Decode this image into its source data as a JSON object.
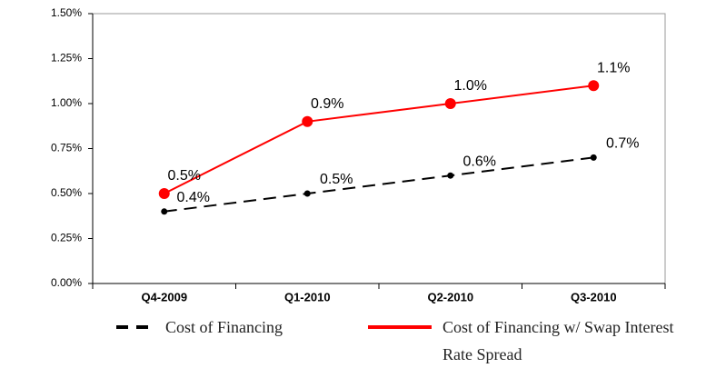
{
  "chart_data": {
    "type": "line",
    "categories": [
      "Q4-2009",
      "Q1-2010",
      "Q2-2010",
      "Q3-2010"
    ],
    "series": [
      {
        "name": "Cost of Financing",
        "color": "#000000",
        "dash": true,
        "values": [
          0.4,
          0.5,
          0.6,
          0.7
        ],
        "value_labels": [
          "0.4%",
          "0.5%",
          "0.6%",
          "0.7%"
        ]
      },
      {
        "name": "Cost of Financing w/ Swap Interest Rate Spread",
        "color": "#ff0000",
        "dash": false,
        "values": [
          0.5,
          0.9,
          1.0,
          1.1
        ],
        "value_labels": [
          "0.5%",
          "0.9%",
          "1.0%",
          "1.1%"
        ]
      }
    ],
    "ylim": [
      0,
      1.5
    ],
    "yticks": [
      {
        "value": 0,
        "label": "0.00%"
      },
      {
        "value": 0.25,
        "label": "0.25%"
      },
      {
        "value": 0.5,
        "label": "0.50%"
      },
      {
        "value": 0.75,
        "label": "0.75%"
      },
      {
        "value": 1.0,
        "label": "1.00%"
      },
      {
        "value": 1.25,
        "label": "1.25%"
      },
      {
        "value": 1.5,
        "label": "1.50%"
      }
    ],
    "grid": false
  }
}
